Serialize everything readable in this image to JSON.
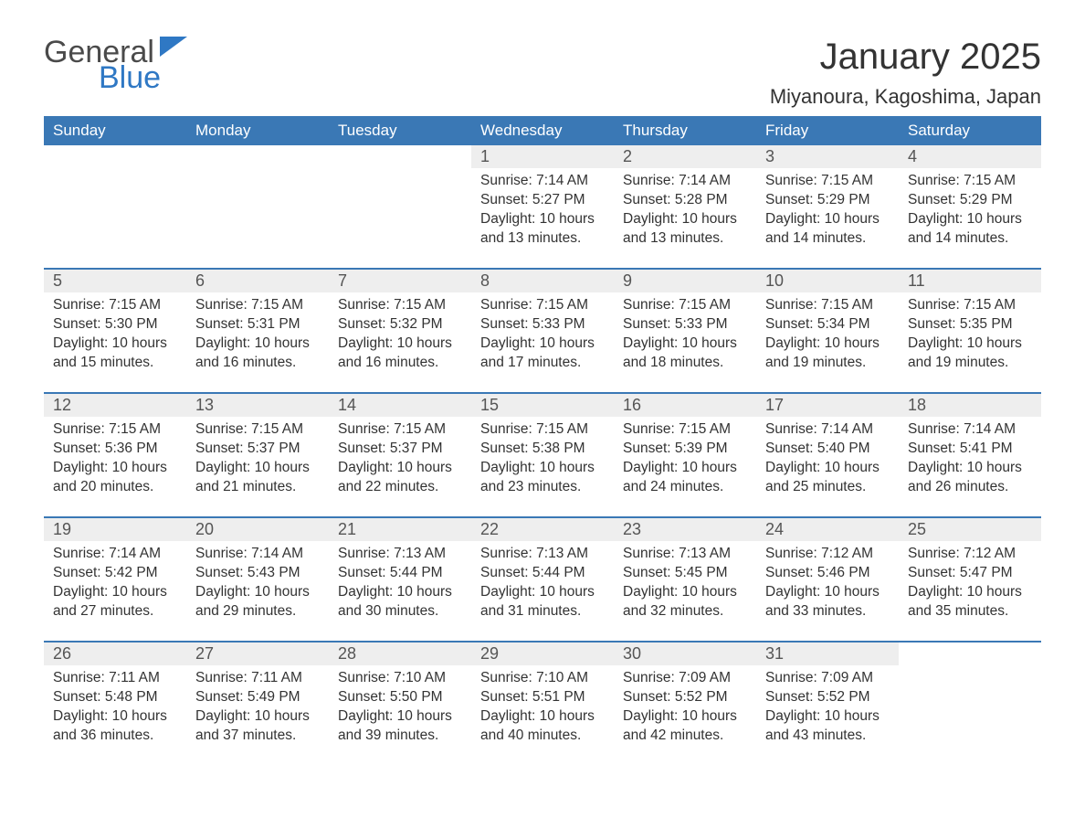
{
  "brand": {
    "word1": "General",
    "word2": "Blue",
    "accent_color": "#2f78c4"
  },
  "title": "January 2025",
  "location": "Miyanoura, Kagoshima, Japan",
  "colors": {
    "header_bg": "#3a78b5",
    "header_text": "#ffffff",
    "daynum_bg": "#eeeeee",
    "row_border": "#3a78b5",
    "body_text": "#333333"
  },
  "weekday_headers": [
    "Sunday",
    "Monday",
    "Tuesday",
    "Wednesday",
    "Thursday",
    "Friday",
    "Saturday"
  ],
  "weeks": [
    [
      null,
      null,
      null,
      {
        "day": "1",
        "sunrise": "Sunrise: 7:14 AM",
        "sunset": "Sunset: 5:27 PM",
        "daylight": "Daylight: 10 hours and 13 minutes."
      },
      {
        "day": "2",
        "sunrise": "Sunrise: 7:14 AM",
        "sunset": "Sunset: 5:28 PM",
        "daylight": "Daylight: 10 hours and 13 minutes."
      },
      {
        "day": "3",
        "sunrise": "Sunrise: 7:15 AM",
        "sunset": "Sunset: 5:29 PM",
        "daylight": "Daylight: 10 hours and 14 minutes."
      },
      {
        "day": "4",
        "sunrise": "Sunrise: 7:15 AM",
        "sunset": "Sunset: 5:29 PM",
        "daylight": "Daylight: 10 hours and 14 minutes."
      }
    ],
    [
      {
        "day": "5",
        "sunrise": "Sunrise: 7:15 AM",
        "sunset": "Sunset: 5:30 PM",
        "daylight": "Daylight: 10 hours and 15 minutes."
      },
      {
        "day": "6",
        "sunrise": "Sunrise: 7:15 AM",
        "sunset": "Sunset: 5:31 PM",
        "daylight": "Daylight: 10 hours and 16 minutes."
      },
      {
        "day": "7",
        "sunrise": "Sunrise: 7:15 AM",
        "sunset": "Sunset: 5:32 PM",
        "daylight": "Daylight: 10 hours and 16 minutes."
      },
      {
        "day": "8",
        "sunrise": "Sunrise: 7:15 AM",
        "sunset": "Sunset: 5:33 PM",
        "daylight": "Daylight: 10 hours and 17 minutes."
      },
      {
        "day": "9",
        "sunrise": "Sunrise: 7:15 AM",
        "sunset": "Sunset: 5:33 PM",
        "daylight": "Daylight: 10 hours and 18 minutes."
      },
      {
        "day": "10",
        "sunrise": "Sunrise: 7:15 AM",
        "sunset": "Sunset: 5:34 PM",
        "daylight": "Daylight: 10 hours and 19 minutes."
      },
      {
        "day": "11",
        "sunrise": "Sunrise: 7:15 AM",
        "sunset": "Sunset: 5:35 PM",
        "daylight": "Daylight: 10 hours and 19 minutes."
      }
    ],
    [
      {
        "day": "12",
        "sunrise": "Sunrise: 7:15 AM",
        "sunset": "Sunset: 5:36 PM",
        "daylight": "Daylight: 10 hours and 20 minutes."
      },
      {
        "day": "13",
        "sunrise": "Sunrise: 7:15 AM",
        "sunset": "Sunset: 5:37 PM",
        "daylight": "Daylight: 10 hours and 21 minutes."
      },
      {
        "day": "14",
        "sunrise": "Sunrise: 7:15 AM",
        "sunset": "Sunset: 5:37 PM",
        "daylight": "Daylight: 10 hours and 22 minutes."
      },
      {
        "day": "15",
        "sunrise": "Sunrise: 7:15 AM",
        "sunset": "Sunset: 5:38 PM",
        "daylight": "Daylight: 10 hours and 23 minutes."
      },
      {
        "day": "16",
        "sunrise": "Sunrise: 7:15 AM",
        "sunset": "Sunset: 5:39 PM",
        "daylight": "Daylight: 10 hours and 24 minutes."
      },
      {
        "day": "17",
        "sunrise": "Sunrise: 7:14 AM",
        "sunset": "Sunset: 5:40 PM",
        "daylight": "Daylight: 10 hours and 25 minutes."
      },
      {
        "day": "18",
        "sunrise": "Sunrise: 7:14 AM",
        "sunset": "Sunset: 5:41 PM",
        "daylight": "Daylight: 10 hours and 26 minutes."
      }
    ],
    [
      {
        "day": "19",
        "sunrise": "Sunrise: 7:14 AM",
        "sunset": "Sunset: 5:42 PM",
        "daylight": "Daylight: 10 hours and 27 minutes."
      },
      {
        "day": "20",
        "sunrise": "Sunrise: 7:14 AM",
        "sunset": "Sunset: 5:43 PM",
        "daylight": "Daylight: 10 hours and 29 minutes."
      },
      {
        "day": "21",
        "sunrise": "Sunrise: 7:13 AM",
        "sunset": "Sunset: 5:44 PM",
        "daylight": "Daylight: 10 hours and 30 minutes."
      },
      {
        "day": "22",
        "sunrise": "Sunrise: 7:13 AM",
        "sunset": "Sunset: 5:44 PM",
        "daylight": "Daylight: 10 hours and 31 minutes."
      },
      {
        "day": "23",
        "sunrise": "Sunrise: 7:13 AM",
        "sunset": "Sunset: 5:45 PM",
        "daylight": "Daylight: 10 hours and 32 minutes."
      },
      {
        "day": "24",
        "sunrise": "Sunrise: 7:12 AM",
        "sunset": "Sunset: 5:46 PM",
        "daylight": "Daylight: 10 hours and 33 minutes."
      },
      {
        "day": "25",
        "sunrise": "Sunrise: 7:12 AM",
        "sunset": "Sunset: 5:47 PM",
        "daylight": "Daylight: 10 hours and 35 minutes."
      }
    ],
    [
      {
        "day": "26",
        "sunrise": "Sunrise: 7:11 AM",
        "sunset": "Sunset: 5:48 PM",
        "daylight": "Daylight: 10 hours and 36 minutes."
      },
      {
        "day": "27",
        "sunrise": "Sunrise: 7:11 AM",
        "sunset": "Sunset: 5:49 PM",
        "daylight": "Daylight: 10 hours and 37 minutes."
      },
      {
        "day": "28",
        "sunrise": "Sunrise: 7:10 AM",
        "sunset": "Sunset: 5:50 PM",
        "daylight": "Daylight: 10 hours and 39 minutes."
      },
      {
        "day": "29",
        "sunrise": "Sunrise: 7:10 AM",
        "sunset": "Sunset: 5:51 PM",
        "daylight": "Daylight: 10 hours and 40 minutes."
      },
      {
        "day": "30",
        "sunrise": "Sunrise: 7:09 AM",
        "sunset": "Sunset: 5:52 PM",
        "daylight": "Daylight: 10 hours and 42 minutes."
      },
      {
        "day": "31",
        "sunrise": "Sunrise: 7:09 AM",
        "sunset": "Sunset: 5:52 PM",
        "daylight": "Daylight: 10 hours and 43 minutes."
      },
      null
    ]
  ]
}
